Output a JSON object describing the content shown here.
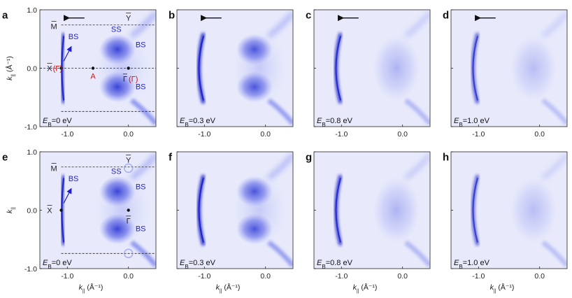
{
  "figure": {
    "panels": [
      {
        "id": "a",
        "label": "a",
        "energy": "0",
        "ann": "full",
        "red": true,
        "arrow": true,
        "xlabel": false,
        "ylabels": true
      },
      {
        "id": "b",
        "label": "b",
        "energy": "0.3",
        "ann": "none",
        "red": false,
        "arrow": true,
        "xlabel": false,
        "ylabels": false
      },
      {
        "id": "c",
        "label": "c",
        "energy": "0.8",
        "ann": "none",
        "red": false,
        "arrow": true,
        "xlabel": false,
        "ylabels": false
      },
      {
        "id": "d",
        "label": "d",
        "energy": "1.0",
        "ann": "none",
        "red": false,
        "arrow": true,
        "xlabel": false,
        "ylabels": false
      },
      {
        "id": "e",
        "label": "e",
        "energy": "0",
        "ann": "full2",
        "red": false,
        "arrow": false,
        "xlabel": true,
        "ylabels": true
      },
      {
        "id": "f",
        "label": "f",
        "energy": "0.3",
        "ann": "none",
        "red": false,
        "arrow": false,
        "xlabel": true,
        "ylabels": false
      },
      {
        "id": "g",
        "label": "g",
        "energy": "0.8",
        "ann": "none",
        "red": false,
        "arrow": false,
        "xlabel": true,
        "ylabels": false
      },
      {
        "id": "h",
        "label": "h",
        "energy": "1.0",
        "ann": "none",
        "red": false,
        "arrow": false,
        "xlabel": true,
        "ylabels": false
      }
    ],
    "x_ticks": [
      "-1.0",
      "0.0"
    ],
    "x_tick_values": [
      -1.0,
      0.0
    ],
    "y_ticks": [
      "1.0",
      "0.0",
      "-1.0"
    ],
    "y_tick_values": [
      1.0,
      0.0,
      -1.0
    ],
    "x_range": [
      -1.45,
      0.45
    ],
    "y_range": [
      -1.0,
      1.0
    ],
    "energy_prefix": "E",
    "energy_sub": "B",
    "energy_unit": " eV",
    "axis_label_k": "k",
    "axis_label_sub": "||",
    "axis_unit": " (Å⁻¹)",
    "annotations": {
      "M_bar": "M",
      "Y_bar": "Y",
      "X_bar": "X",
      "Gamma_bar": "Γ",
      "paren_gamma": "(Γ)",
      "SS": "SS",
      "BS": "BS",
      "A": "A"
    },
    "colors": {
      "map": "#2a33d6",
      "red_line": "#e02020",
      "dashed": "#333333"
    }
  }
}
